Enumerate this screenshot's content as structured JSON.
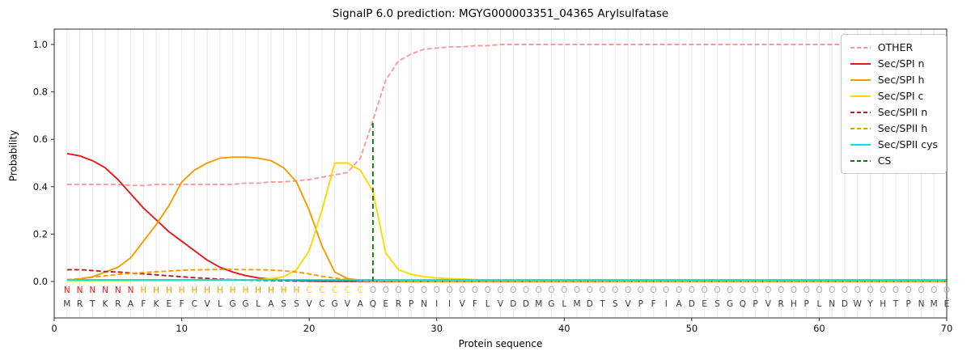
{
  "chart_data": {
    "type": "line",
    "title": "SignalP 6.0 prediction: MGYG000003351_04365 Arylsulfatase",
    "xlabel": "Protein sequence",
    "ylabel": "Probability",
    "xlim": [
      0,
      70
    ],
    "ylim": [
      0.0,
      1.05
    ],
    "x_ticks": [
      0,
      10,
      20,
      30,
      40,
      50,
      60,
      70
    ],
    "y_ticks": [
      0.0,
      0.2,
      0.4,
      0.6,
      0.8,
      1.0
    ],
    "grid": "vertical-per-residue",
    "legend_position": "upper right",
    "series": [
      {
        "name": "OTHER",
        "color": "#f49c9c",
        "dash": "dashed",
        "values": [
          0.41,
          0.41,
          0.41,
          0.41,
          0.41,
          0.405,
          0.405,
          0.41,
          0.41,
          0.41,
          0.41,
          0.41,
          0.41,
          0.41,
          0.415,
          0.415,
          0.42,
          0.42,
          0.425,
          0.43,
          0.44,
          0.45,
          0.46,
          0.52,
          0.68,
          0.85,
          0.93,
          0.96,
          0.98,
          0.985,
          0.99,
          0.99,
          0.995,
          0.995,
          1,
          1,
          1,
          1,
          1,
          1,
          1,
          1,
          1,
          1,
          1,
          1,
          1,
          1,
          1,
          1,
          1,
          1,
          1,
          1,
          1,
          1,
          1,
          1,
          1,
          1,
          1,
          1,
          1,
          1,
          1,
          1,
          1,
          1,
          1,
          1
        ]
      },
      {
        "name": "Sec/SPI n",
        "color": "#e41a1c",
        "dash": "solid",
        "values": [
          0.54,
          0.53,
          0.51,
          0.48,
          0.43,
          0.37,
          0.31,
          0.26,
          0.21,
          0.17,
          0.13,
          0.09,
          0.06,
          0.04,
          0.025,
          0.015,
          0.01,
          0.006,
          0.004,
          0.002,
          0.001,
          0.001,
          0.001,
          0.001,
          0.001,
          0,
          0,
          0,
          0,
          0,
          0,
          0,
          0,
          0,
          0,
          0,
          0,
          0,
          0,
          0,
          0,
          0,
          0,
          0,
          0,
          0,
          0,
          0,
          0,
          0,
          0,
          0,
          0,
          0,
          0,
          0,
          0,
          0,
          0,
          0,
          0,
          0,
          0,
          0,
          0,
          0,
          0,
          0,
          0,
          0
        ]
      },
      {
        "name": "Sec/SPI h",
        "color": "#f59b00",
        "dash": "solid",
        "values": [
          0.005,
          0.01,
          0.02,
          0.04,
          0.06,
          0.1,
          0.17,
          0.24,
          0.32,
          0.42,
          0.47,
          0.5,
          0.52,
          0.525,
          0.525,
          0.52,
          0.51,
          0.48,
          0.42,
          0.3,
          0.15,
          0.04,
          0.012,
          0.005,
          0.002,
          0.001,
          0.001,
          0,
          0,
          0,
          0,
          0,
          0,
          0,
          0,
          0,
          0,
          0,
          0,
          0,
          0,
          0,
          0,
          0,
          0,
          0,
          0,
          0,
          0,
          0,
          0,
          0,
          0,
          0,
          0,
          0,
          0,
          0,
          0,
          0,
          0,
          0,
          0,
          0,
          0,
          0,
          0,
          0,
          0,
          0
        ]
      },
      {
        "name": "Sec/SPI c",
        "color": "#ffd800",
        "dash": "solid",
        "values": [
          0.002,
          0.002,
          0.002,
          0.002,
          0.002,
          0.002,
          0.003,
          0.003,
          0.003,
          0.004,
          0.004,
          0.005,
          0.005,
          0.006,
          0.006,
          0.008,
          0.012,
          0.02,
          0.05,
          0.13,
          0.3,
          0.5,
          0.5,
          0.47,
          0.38,
          0.12,
          0.05,
          0.03,
          0.02,
          0.015,
          0.012,
          0.01,
          0.008,
          0.006,
          0.005,
          0.004,
          0.003,
          0.003,
          0.002,
          0.002,
          0.002,
          0.002,
          0.001,
          0.001,
          0.001,
          0.001,
          0.001,
          0.001,
          0.001,
          0.001,
          0.001,
          0.001,
          0.001,
          0.001,
          0.001,
          0.001,
          0.001,
          0.001,
          0.001,
          0.001,
          0.001,
          0.001,
          0.001,
          0.001,
          0.001,
          0.001,
          0.001,
          0.001,
          0.001,
          0.001
        ]
      },
      {
        "name": "Sec/SPII n",
        "color": "#b22222",
        "dash": "dashed",
        "values": [
          0.05,
          0.05,
          0.046,
          0.042,
          0.04,
          0.036,
          0.032,
          0.028,
          0.024,
          0.02,
          0.016,
          0.013,
          0.01,
          0.008,
          0.006,
          0.005,
          0.004,
          0.003,
          0.002,
          0.002,
          0.001,
          0.001,
          0.001,
          0.001,
          0.001,
          0,
          0,
          0,
          0,
          0,
          0,
          0,
          0,
          0,
          0,
          0,
          0,
          0,
          0,
          0,
          0,
          0,
          0,
          0,
          0,
          0,
          0,
          0,
          0,
          0,
          0,
          0,
          0,
          0,
          0,
          0,
          0,
          0,
          0,
          0,
          0,
          0,
          0,
          0,
          0,
          0,
          0,
          0,
          0,
          0
        ]
      },
      {
        "name": "Sec/SPII h",
        "color": "#f59b00",
        "dash": "dashed",
        "values": [
          0.008,
          0.012,
          0.018,
          0.024,
          0.03,
          0.034,
          0.038,
          0.041,
          0.044,
          0.047,
          0.049,
          0.05,
          0.051,
          0.051,
          0.05,
          0.05,
          0.048,
          0.045,
          0.04,
          0.032,
          0.022,
          0.014,
          0.008,
          0.004,
          0.002,
          0.001,
          0,
          0,
          0,
          0,
          0,
          0,
          0,
          0,
          0,
          0,
          0,
          0,
          0,
          0,
          0,
          0,
          0,
          0,
          0,
          0,
          0,
          0,
          0,
          0,
          0,
          0,
          0,
          0,
          0,
          0,
          0,
          0,
          0,
          0,
          0,
          0,
          0,
          0,
          0,
          0,
          0,
          0,
          0,
          0
        ]
      },
      {
        "name": "Sec/SPII cys",
        "color": "#00e0e0",
        "dash": "solid",
        "values": [
          0.007,
          0.007,
          0.007,
          0.007,
          0.007,
          0.007,
          0.007,
          0.007,
          0.007,
          0.007,
          0.007,
          0.007,
          0.007,
          0.007,
          0.007,
          0.007,
          0.007,
          0.007,
          0.007,
          0.007,
          0.007,
          0.007,
          0.007,
          0.007,
          0.007,
          0.007,
          0.007,
          0.007,
          0.007,
          0.007,
          0.007,
          0.007,
          0.007,
          0.007,
          0.007,
          0.007,
          0.007,
          0.007,
          0.007,
          0.007,
          0.007,
          0.007,
          0.007,
          0.007,
          0.007,
          0.007,
          0.007,
          0.007,
          0.007,
          0.007,
          0.007,
          0.007,
          0.007,
          0.007,
          0.007,
          0.007,
          0.007,
          0.007,
          0.007,
          0.007,
          0.007,
          0.007,
          0.007,
          0.007,
          0.007,
          0.007,
          0.007,
          0.007,
          0.007,
          0.007
        ]
      }
    ],
    "cs_marker": {
      "name": "CS",
      "position": 25,
      "top": 0.68,
      "color": "#0b7a0b",
      "dash": "dashed"
    },
    "sequence": "MRTKRAFKEFCVLGGLASSVCGVAQERPNIIVFLVDDMGLMDTSVPFIADESGQPVRHPLNDWYHTPNME",
    "region_labels": "NNNNNNHHHHHHHHHHHHHCCCCCOOOOOOOOOOOOOOOOOOOOOOOOOOOOOOOOOOOOOOOOOOOOOO",
    "region_colors": {
      "N": "#e41a1c",
      "H": "#f59b00",
      "C": "#ffd800",
      "O": "#b0b0b0"
    }
  }
}
